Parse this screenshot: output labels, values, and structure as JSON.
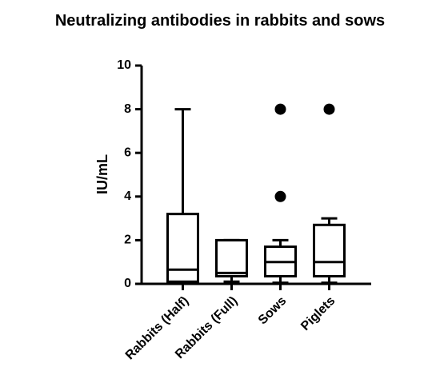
{
  "chart_data": {
    "type": "box",
    "title": "Neutralizing antibodies in rabbits and sows",
    "y_label": "IU/mL",
    "categories": [
      "Rabbits (Half)",
      "Rabbits (Full)",
      "Sows",
      "Piglets"
    ],
    "boxes": [
      {
        "min": 0.05,
        "q1": 0.1,
        "median": 0.65,
        "q3": 3.2,
        "max": 8,
        "outliers": []
      },
      {
        "min": 0.1,
        "q1": 0.35,
        "median": 0.5,
        "q3": 2,
        "max": 2,
        "outliers": []
      },
      {
        "min": 0.05,
        "q1": 0.35,
        "median": 1,
        "q3": 1.7,
        "max": 2,
        "outliers": [
          4,
          8
        ]
      },
      {
        "min": 0.05,
        "q1": 0.35,
        "median": 1,
        "q3": 2.7,
        "max": 3,
        "outliers": [
          8
        ]
      }
    ],
    "color": "#000000",
    "ylim": [
      0,
      10
    ],
    "yticks": [
      0,
      2,
      4,
      6,
      8,
      10
    ]
  }
}
